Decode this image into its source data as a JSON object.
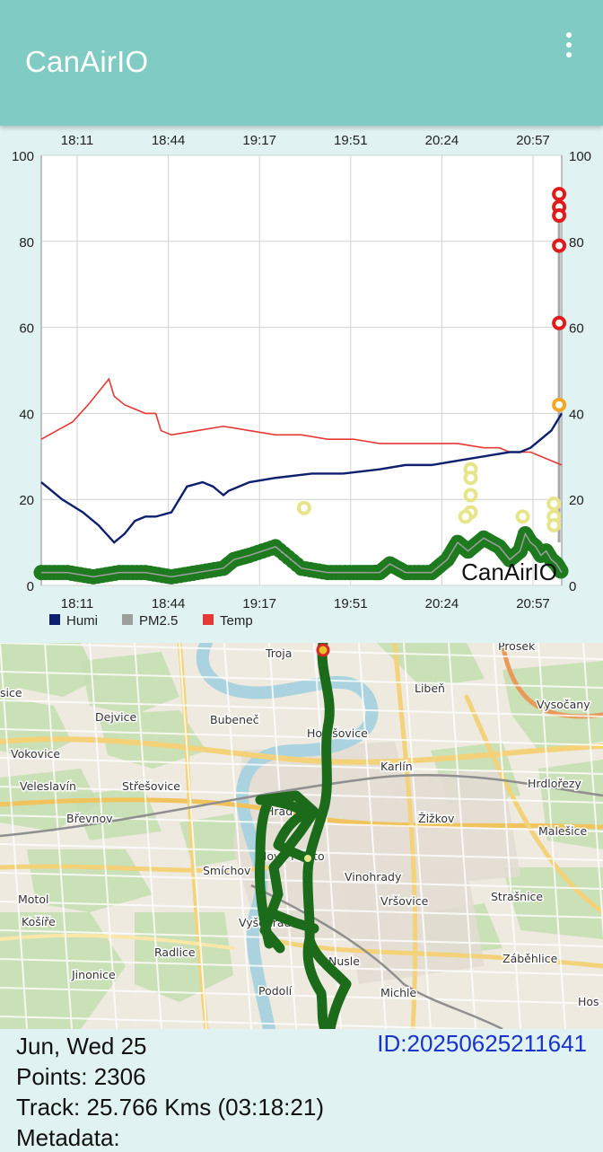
{
  "app": {
    "title": "CanAirIO",
    "menu_icon": "more-vert-icon"
  },
  "chart_data": {
    "type": "line",
    "x_tick_labels": [
      "18:11",
      "18:44",
      "19:17",
      "19:51",
      "20:24",
      "20:57"
    ],
    "y_ticks": [
      0,
      20,
      40,
      60,
      80,
      100
    ],
    "ylim": [
      0,
      100
    ],
    "watermark": "CanAirIO",
    "legend_position": "bottom-left",
    "grid": true,
    "series": [
      {
        "name": "Humi",
        "color": "#0d1f6e",
        "x": [
          0,
          1,
          4,
          8,
          11,
          14,
          16,
          18,
          20,
          22,
          25,
          28,
          31,
          33,
          34,
          35,
          36,
          38,
          40,
          45,
          52,
          58,
          65,
          70,
          75,
          80,
          85,
          90,
          92,
          94,
          96,
          97,
          98,
          99,
          100
        ],
        "values": [
          24,
          23,
          20,
          17,
          14,
          10,
          12,
          15,
          16,
          16,
          17,
          23,
          24,
          23,
          22,
          21,
          22,
          23,
          24,
          25,
          26,
          26,
          27,
          28,
          28,
          29,
          30,
          31,
          31,
          32,
          34,
          35,
          36,
          38,
          40
        ]
      },
      {
        "name": "PM2.5",
        "color": "#9e9e9e",
        "x": [
          0,
          5,
          10,
          15,
          20,
          25,
          30,
          35,
          37,
          40,
          45,
          50,
          55,
          60,
          64,
          65,
          66,
          67,
          70,
          75,
          78,
          80,
          82,
          85,
          88,
          90,
          92,
          93,
          94,
          95,
          96,
          97,
          98,
          99,
          100
        ],
        "values": [
          3,
          3,
          2,
          3,
          3,
          2,
          3,
          4,
          6,
          7,
          9,
          4,
          3,
          3,
          3,
          3,
          4,
          5,
          3,
          3,
          6,
          10,
          8,
          11,
          9,
          6,
          8,
          12,
          10,
          9,
          7,
          8,
          6,
          5,
          3
        ]
      },
      {
        "name": "Temp",
        "color": "#e53935",
        "x": [
          0,
          3,
          6,
          9,
          11,
          13,
          14,
          16,
          18,
          20,
          22,
          23,
          25,
          30,
          35,
          40,
          45,
          50,
          55,
          60,
          65,
          70,
          75,
          80,
          85,
          88,
          90,
          92,
          94,
          96,
          98,
          100
        ],
        "values": [
          34,
          36,
          38,
          42,
          45,
          48,
          44,
          42,
          41,
          40,
          40,
          36,
          35,
          36,
          37,
          36,
          35,
          35,
          34,
          34,
          33,
          33,
          33,
          33,
          32,
          32,
          31,
          31,
          31,
          30,
          29,
          28
        ]
      }
    ],
    "highlight_points": [
      {
        "x": 99.5,
        "y": 91,
        "color": "#e31a1c"
      },
      {
        "x": 99.5,
        "y": 88,
        "color": "#e31a1c"
      },
      {
        "x": 99.5,
        "y": 86,
        "color": "#e31a1c"
      },
      {
        "x": 99.5,
        "y": 79,
        "color": "#e31a1c"
      },
      {
        "x": 99.5,
        "y": 61,
        "color": "#e31a1c"
      },
      {
        "x": 99.5,
        "y": 42,
        "color": "#f5a623"
      },
      {
        "x": 50.5,
        "y": 18,
        "color": "#e7e58a"
      },
      {
        "x": 82.5,
        "y": 27,
        "color": "#e7e58a"
      },
      {
        "x": 82.5,
        "y": 25,
        "color": "#e7e58a"
      },
      {
        "x": 82.5,
        "y": 21,
        "color": "#e7e58a"
      },
      {
        "x": 82.5,
        "y": 17,
        "color": "#e7e58a"
      },
      {
        "x": 81.5,
        "y": 16,
        "color": "#e7e58a"
      },
      {
        "x": 92.5,
        "y": 16,
        "color": "#e7e58a"
      },
      {
        "x": 98.5,
        "y": 19,
        "color": "#e7e58a"
      },
      {
        "x": 98.5,
        "y": 16,
        "color": "#e7e58a"
      },
      {
        "x": 98.5,
        "y": 14,
        "color": "#e7e58a"
      }
    ]
  },
  "map": {
    "place_labels": [
      "Troja",
      "Prosek",
      "Libeň",
      "Vysočany",
      "Dejvice",
      "Bubeneč",
      "Holešovice",
      "Vokovice",
      "Karlín",
      "Hrdlořezy",
      "Veleslavín",
      "Střešovice",
      "Žižkov",
      "Břevnov",
      "Malešice",
      "Vinohrady",
      "Smíchov",
      "Motol",
      "Košíře",
      "Vršovice",
      "Strašnice",
      "Radlice",
      "Nusle",
      "Záběhlice",
      "Jinonice",
      "Vyšehrad",
      "Podolí",
      "Michle",
      "Hos",
      "sice",
      "Nové Město",
      "Hrad"
    ],
    "track_color": "#1b6b1b"
  },
  "info": {
    "date": "Jun, Wed 25",
    "points": "Points: 2306",
    "track": "Track: 25.766 Kms (03:18:21)",
    "metadata": "Metadata:",
    "id": "ID:20250625211641"
  }
}
